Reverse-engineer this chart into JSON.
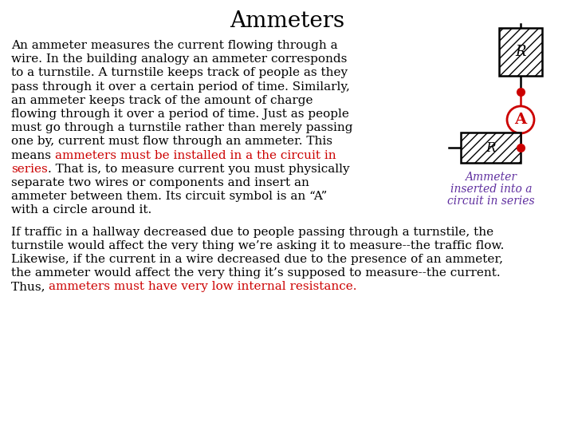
{
  "title": "Ammeters",
  "title_fontsize": 20,
  "bg_color": "#ffffff",
  "text_color": "#000000",
  "red_color": "#cc0000",
  "purple_color": "#6030a0",
  "circuit_color": "#cc0000",
  "para1_normal_lines": [
    "An ammeter measures the current flowing through a",
    "wire. In the building analogy an ammeter corresponds",
    "to a turnstile. A turnstile keeps track of people as they",
    "pass through it over a certain period of time. Similarly,",
    "an ammeter keeps track of the amount of charge",
    "flowing through it over a period of time. Just as people",
    "must go through a turnstile rather than merely passing",
    "one by, current must flow through an ammeter. This"
  ],
  "line8_black": "means ",
  "line8_red": "ammeters must be installed in a the circuit in",
  "line9_red": "series",
  "line9_black": ". That is, to measure current you must physically",
  "para1_end_lines": [
    "separate two wires or components and insert an",
    "ammeter between them. Its circuit symbol is an “A”",
    "with a circle around it."
  ],
  "para2_lines": [
    "If traffic in a hallway decreased due to people passing through a turnstile, the",
    "turnstile would affect the very thing we’re asking it to measure--the traffic flow.",
    "Likewise, if the current in a wire decreased due to the presence of an ammeter,",
    "the ammeter would affect the very thing it’s supposed to measure--the current."
  ],
  "para2_last_black": "Thus, ",
  "para2_last_red": "ammeters must have very low internal resistance.",
  "caption_line1": "Ammeter",
  "caption_line2": "inserted into a",
  "caption_line3": "circuit in series",
  "fs_main": 11.0,
  "fs_title": 20
}
